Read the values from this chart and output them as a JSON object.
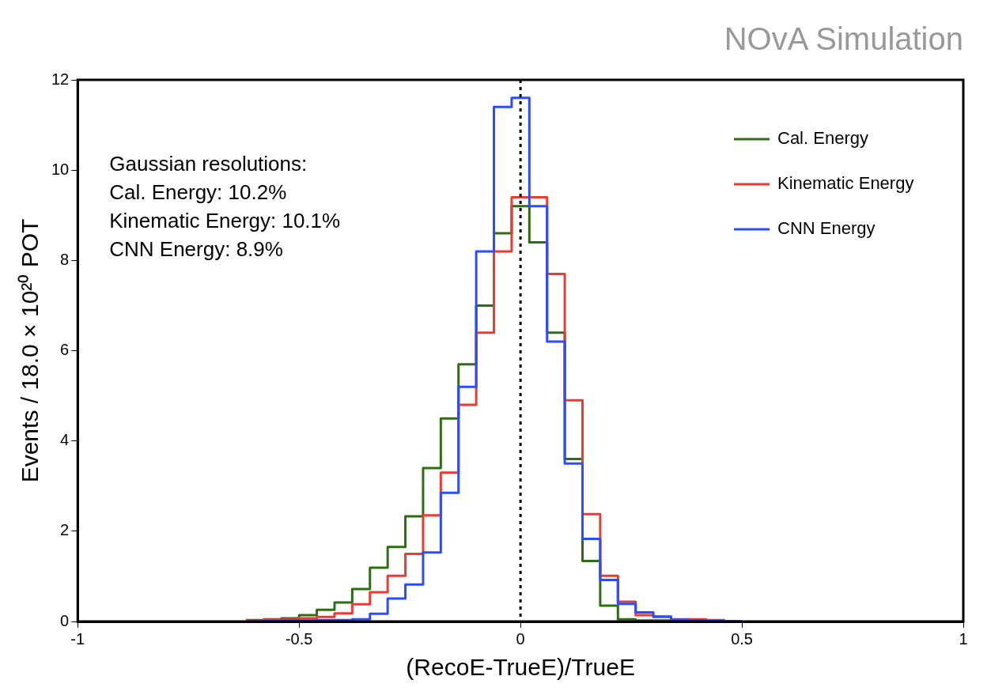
{
  "chart_data": {
    "type": "histogram",
    "title": "NOvA Simulation",
    "xlabel": "(RecoE-TrueE)/TrueE",
    "ylabel": "Events / 18.0 × 10²⁰ POT",
    "bins": [
      -0.62,
      -0.58,
      -0.54,
      -0.5,
      -0.46,
      -0.42,
      -0.38,
      -0.34,
      -0.3,
      -0.26,
      -0.22,
      -0.18,
      -0.14,
      -0.1,
      -0.06,
      -0.02,
      0.02,
      0.06,
      0.1,
      0.14,
      0.18,
      0.22,
      0.26,
      0.3,
      0.34,
      0.38,
      0.42,
      0.46,
      0.5
    ],
    "series": [
      {
        "name": "Cal. Energy",
        "color": "#2e6e12",
        "values": [
          0.03,
          0.05,
          0.07,
          0.14,
          0.26,
          0.42,
          0.72,
          1.19,
          1.65,
          2.33,
          3.4,
          4.5,
          5.7,
          7.0,
          8.6,
          9.2,
          8.4,
          6.4,
          3.6,
          1.34,
          0.35,
          0.05,
          0.02,
          0.02,
          0.01,
          0,
          0,
          0
        ]
      },
      {
        "name": "Kinematic Energy",
        "color": "#f03a30",
        "values": [
          0.02,
          0.04,
          0.05,
          0.07,
          0.1,
          0.18,
          0.38,
          0.65,
          1.01,
          1.5,
          2.35,
          3.3,
          4.8,
          6.4,
          8.2,
          9.4,
          9.4,
          7.7,
          4.9,
          2.38,
          1.01,
          0.44,
          0.14,
          0.1,
          0.05,
          0.05,
          0.03,
          0
        ]
      },
      {
        "name": "CNN Energy",
        "color": "#2b4cff",
        "values": [
          0,
          0.01,
          0.02,
          0.02,
          0.03,
          0.03,
          0.05,
          0.17,
          0.51,
          0.82,
          1.53,
          2.85,
          5.2,
          8.2,
          11.4,
          11.6,
          9.2,
          6.2,
          3.5,
          1.83,
          0.92,
          0.39,
          0.2,
          0.11,
          0.04,
          0.02,
          0.01,
          0
        ]
      }
    ],
    "xlim": [
      -1,
      1
    ],
    "xticks": [
      -1,
      -0.5,
      0,
      0.5,
      1
    ],
    "ylim": [
      0,
      12
    ],
    "yticks": [
      0,
      2,
      4,
      6,
      8,
      10,
      12
    ],
    "ref_lines": [
      {
        "axis": "x",
        "value": 0,
        "color": "#000000",
        "line_style": "dotted"
      }
    ],
    "annotations": [
      "Gaussian resolutions:",
      "Cal. Energy: 10.2%",
      "Kinematic Energy: 10.1%",
      "CNN Energy: 8.9%"
    ],
    "legend": "top right"
  }
}
